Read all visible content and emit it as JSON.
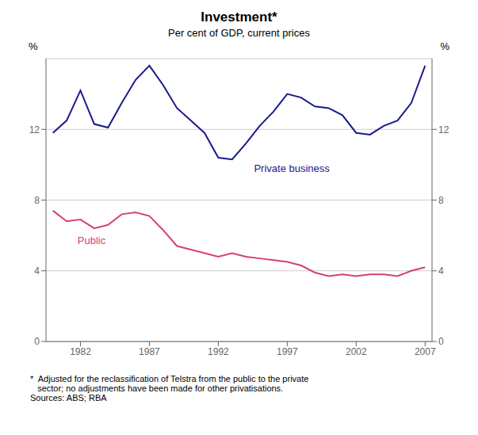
{
  "chart_data": {
    "type": "line",
    "title": "Investment*",
    "subtitle": "Per cent of GDP, current prices",
    "ylabel": "%",
    "y2label": "%",
    "footnote": "*  Adjusted for the reclassification of Telstra from the public to the private\n   sector; no adjustments have been made for other privatisations.\nSources: ABS; RBA",
    "x": [
      1980,
      1981,
      1982,
      1983,
      1984,
      1985,
      1986,
      1987,
      1988,
      1989,
      1990,
      1991,
      1992,
      1993,
      1994,
      1995,
      1996,
      1997,
      1998,
      1999,
      2000,
      2001,
      2002,
      2003,
      2004,
      2005,
      2006,
      2007
    ],
    "series": [
      {
        "name": "Private business",
        "color": "#1a1a8c",
        "values": [
          11.8,
          12.5,
          14.2,
          12.3,
          12.1,
          13.5,
          14.8,
          15.6,
          14.5,
          13.2,
          12.5,
          11.8,
          10.4,
          10.3,
          11.2,
          12.2,
          13.0,
          14.0,
          13.8,
          13.3,
          13.2,
          12.8,
          11.8,
          11.7,
          12.2,
          12.5,
          13.5,
          15.6
        ]
      },
      {
        "name": "Public",
        "color": "#d4417a",
        "values": [
          7.4,
          6.8,
          6.9,
          6.4,
          6.6,
          7.2,
          7.3,
          7.1,
          6.3,
          5.4,
          5.2,
          5.0,
          4.8,
          5.0,
          4.8,
          4.7,
          4.6,
          4.5,
          4.3,
          3.9,
          3.7,
          3.8,
          3.7,
          3.8,
          3.8,
          3.7,
          4.0,
          4.2
        ]
      }
    ],
    "annotations": [
      {
        "text": "Private business",
        "x": 1994.3,
        "y": 9.8,
        "color": "#1a1a8c"
      },
      {
        "text": "Public",
        "x": 1981.5,
        "y": 5.7,
        "color": "#d4417a"
      }
    ],
    "xlim": [
      1979.5,
      2007.5
    ],
    "xticks": [
      1982,
      1987,
      1992,
      1997,
      2002,
      2007
    ],
    "ylim": [
      0,
      16
    ],
    "yticks": [
      0,
      4,
      8,
      12
    ],
    "y2lim": [
      0,
      16
    ],
    "y2ticks": [
      0,
      4,
      8,
      12
    ],
    "grid": true
  }
}
